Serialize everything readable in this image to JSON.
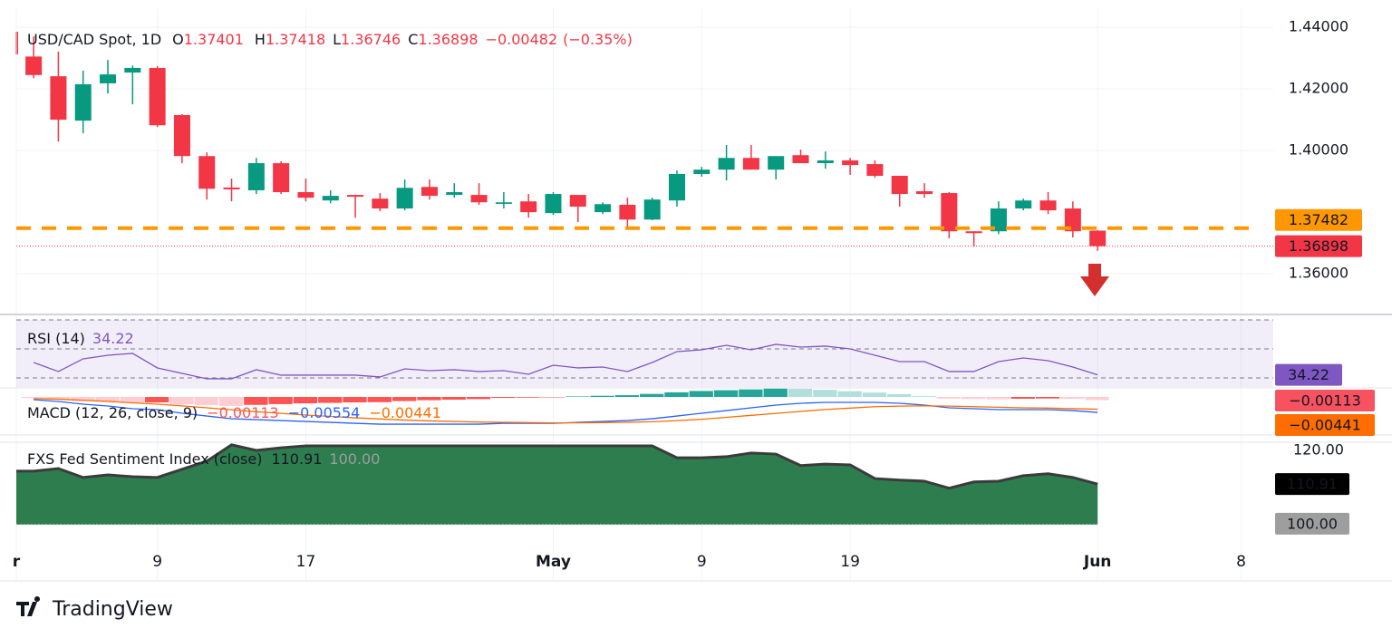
{
  "chart_data": [
    {
      "type": "candlestick",
      "title": "USD/CAD Spot, 1D",
      "prefixes": {
        "open": "O",
        "high": "H",
        "low": "L",
        "close": "C"
      },
      "change": {
        "value": -0.00482,
        "label": "−0.00482"
      },
      "change_pct": {
        "value": -0.35,
        "label": "(−0.35%)"
      },
      "open": [
        1.4305,
        1.4241,
        1.4097,
        1.4218,
        1.4253,
        1.4268,
        1.4115,
        1.3982,
        1.388,
        1.3871,
        1.3959,
        1.3865,
        1.3838,
        1.3856,
        1.3844,
        1.3812,
        1.3882,
        1.3856,
        1.3856,
        1.3827,
        1.3835,
        1.3797,
        1.3856,
        1.38,
        1.3824,
        1.3776,
        1.3838,
        1.3924,
        1.3938,
        1.3976,
        1.3938,
        1.3985,
        1.3959,
        1.3968,
        1.3956,
        1.3918,
        1.3868,
        1.3862,
        1.3738,
        1.3738,
        1.3812,
        1.3838,
        1.3812,
        1.37401
      ],
      "high": [
        1.437,
        1.4321,
        1.4259,
        1.4294,
        1.4276,
        1.4274,
        1.4118,
        1.3994,
        1.3909,
        1.3976,
        1.3965,
        1.3909,
        1.3871,
        1.3856,
        1.3862,
        1.3906,
        1.3906,
        1.3894,
        1.3894,
        1.3865,
        1.3859,
        1.3865,
        1.3856,
        1.3832,
        1.3847,
        1.3847,
        1.3935,
        1.3947,
        1.4018,
        1.4018,
        1.3982,
        1.4003,
        1.3997,
        1.3976,
        1.3968,
        1.3918,
        1.3894,
        1.3865,
        1.3738,
        1.3835,
        1.3844,
        1.3865,
        1.3835,
        1.37418
      ],
      "low": [
        1.4235,
        1.4029,
        1.4056,
        1.4185,
        1.415,
        1.4076,
        1.3959,
        1.3841,
        1.3835,
        1.3859,
        1.3859,
        1.3835,
        1.3829,
        1.3782,
        1.3803,
        1.3806,
        1.3841,
        1.3847,
        1.3824,
        1.3812,
        1.3782,
        1.3791,
        1.3768,
        1.3794,
        1.3753,
        1.3774,
        1.3818,
        1.3915,
        1.3903,
        1.3938,
        1.3906,
        1.3959,
        1.3941,
        1.3921,
        1.3912,
        1.3818,
        1.3847,
        1.3715,
        1.3688,
        1.3729,
        1.3806,
        1.3794,
        1.3718,
        1.36746
      ],
      "close": [
        1.4245,
        1.41,
        1.4215,
        1.4247,
        1.4268,
        1.4082,
        1.3982,
        1.3876,
        1.3874,
        1.3959,
        1.3865,
        1.3847,
        1.3853,
        1.385,
        1.3812,
        1.3879,
        1.3853,
        1.3865,
        1.3832,
        1.3832,
        1.38,
        1.3859,
        1.3818,
        1.3826,
        1.3776,
        1.3841,
        1.3924,
        1.3938,
        1.3976,
        1.3938,
        1.3982,
        1.3959,
        1.3968,
        1.3953,
        1.3918,
        1.3859,
        1.3859,
        1.3738,
        1.3732,
        1.3812,
        1.3838,
        1.3806,
        1.3738,
        1.36898
      ],
      "up_color": "#089981",
      "down_color": "#f23645",
      "ylim": [
        1.3474,
        1.4459
      ],
      "yticks": [
        {
          "value": 1.44,
          "label": "1.44000"
        },
        {
          "value": 1.42,
          "label": "1.42000"
        },
        {
          "value": 1.4,
          "label": "1.40000"
        },
        {
          "value": 1.36,
          "label": "1.36000"
        }
      ],
      "level": 1.37482,
      "level_color": "#ff9800",
      "xlim": [
        -0.7,
        50.1
      ],
      "xticks": [
        {
          "value": -0.7,
          "label": "r"
        },
        {
          "value": 5,
          "label": "9"
        },
        {
          "value": 11,
          "label": "17"
        },
        {
          "value": 21,
          "label": "May"
        },
        {
          "value": 27,
          "label": "9"
        },
        {
          "value": 33,
          "label": "19"
        },
        {
          "value": 43,
          "label": "Jun"
        },
        {
          "value": 48.8,
          "label": "8"
        }
      ],
      "grid": true
    },
    {
      "type": "rsi",
      "title": "RSI (14)",
      "color": "#7e57c2",
      "values": [
        51.3,
        38.8,
        56.3,
        61.3,
        63.8,
        43.8,
        36.3,
        28.8,
        28.8,
        41.3,
        33.8,
        33.8,
        33.8,
        33.8,
        31.3,
        42.5,
        40,
        41.3,
        38.8,
        40,
        35,
        47.5,
        43.8,
        45,
        38.8,
        51.3,
        66.3,
        68.8,
        75,
        68.8,
        76.3,
        72.5,
        73.8,
        70,
        61.3,
        52.5,
        52.5,
        38.8,
        38.8,
        52.5,
        57.5,
        53.8,
        45,
        34.22
      ],
      "levels": [
        110,
        70,
        30
      ],
      "ylim": [
        17.5,
        110
      ]
    },
    {
      "type": "macd",
      "title": "MACD (12, 26, close, 9)",
      "histogram": [
        -0.00038,
        -0.00083,
        -0.00141,
        -0.00166,
        -0.00213,
        -0.00196,
        -0.00266,
        -0.00294,
        -0.00322,
        -0.00284,
        -0.00257,
        -0.00229,
        -0.00212,
        -0.00195,
        -0.00187,
        -0.00147,
        -0.00117,
        -0.00097,
        -0.00077,
        -0.00035,
        -0.00025,
        -0.00015,
        0.00018,
        0.00041,
        0.00063,
        0.00108,
        0.00166,
        0.00214,
        0.00241,
        0.00269,
        0.00297,
        0.00292,
        0.00255,
        0.00205,
        0.00155,
        0.00102,
        0.00027,
        -0.00061,
        -0.00073,
        -0.00086,
        -0.00066,
        -0.00056,
        -0.00069,
        -0.00113
      ],
      "histogram_label": "−0.00113",
      "macd": [
        -0.00098,
        -0.00163,
        -0.00261,
        -0.00326,
        -0.00423,
        -0.00456,
        -0.00586,
        -0.00684,
        -0.00782,
        -0.00814,
        -0.00847,
        -0.00879,
        -0.00912,
        -0.00945,
        -0.00977,
        -0.00977,
        -0.00977,
        -0.00977,
        -0.00977,
        -0.00945,
        -0.00945,
        -0.00945,
        -0.00912,
        -0.00879,
        -0.00847,
        -0.00782,
        -0.00684,
        -0.00586,
        -0.00489,
        -0.00391,
        -0.00293,
        -0.00228,
        -0.00195,
        -0.00195,
        -0.00195,
        -0.00228,
        -0.00293,
        -0.00391,
        -0.00423,
        -0.00456,
        -0.00456,
        -0.00456,
        -0.00489,
        -0.00554
      ],
      "macd_label": "−0.00554",
      "signal": [
        -0.0006,
        -0.0008,
        -0.0012,
        -0.0016,
        -0.0021,
        -0.0026,
        -0.0032,
        -0.0039,
        -0.0046,
        -0.0053,
        -0.0059,
        -0.0065,
        -0.007,
        -0.0075,
        -0.0079,
        -0.0083,
        -0.0086,
        -0.0088,
        -0.009,
        -0.0091,
        -0.0092,
        -0.0093,
        -0.0093,
        -0.0092,
        -0.0091,
        -0.0089,
        -0.0085,
        -0.008,
        -0.0073,
        -0.0066,
        -0.0059,
        -0.0052,
        -0.0045,
        -0.004,
        -0.0035,
        -0.0033,
        -0.0032,
        -0.0033,
        -0.0035,
        -0.0037,
        -0.0039,
        -0.004,
        -0.0042,
        -0.00441
      ],
      "signal_label": "−0.00441",
      "colors": {
        "macd": "#2962ff",
        "signal": "#ff6d00",
        "up": "#26a69a",
        "up_pale": "#b2dfdb",
        "down": "#ff5252",
        "down_pale": "#ffcdd2"
      },
      "ylim": [
        -0.013,
        0.0026
      ]
    },
    {
      "type": "area",
      "title": "FXS Fed Sentiment Index (close)",
      "color": "#2e7d4f",
      "values": [
        114.4,
        115.1,
        112.7,
        113.4,
        112.9,
        112.7,
        114.9,
        117.1,
        121.5,
        120.0,
        120.7,
        121.2,
        121.2,
        121.2,
        121.2,
        121.2,
        121.2,
        121.2,
        121.2,
        121.2,
        121.2,
        121.2,
        121.2,
        121.2,
        121.2,
        121.2,
        118.0,
        118.0,
        118.3,
        119.3,
        119.0,
        115.9,
        116.3,
        116.1,
        112.4,
        112.0,
        111.7,
        109.8,
        111.5,
        111.7,
        113.2,
        113.7,
        112.7,
        110.91
      ],
      "baseline": {
        "value": 100,
        "label": "100.00"
      },
      "ylim": [
        98.5,
        121.7
      ],
      "yticks": [
        {
          "value": 120,
          "label": "120.00"
        }
      ]
    }
  ],
  "footer": {
    "brand": "TradingView"
  }
}
